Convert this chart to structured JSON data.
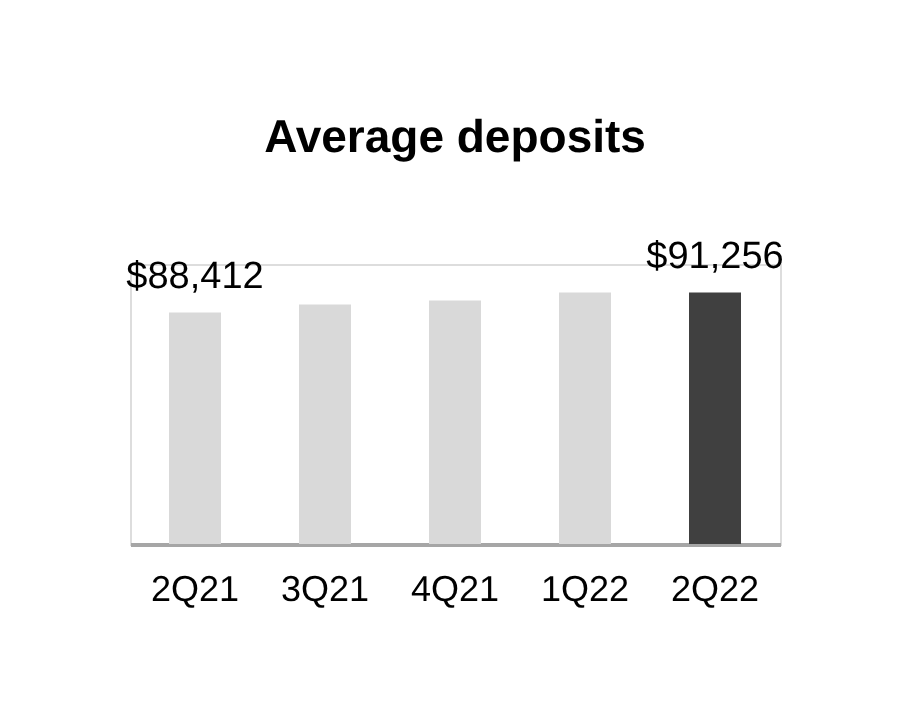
{
  "chart_data": {
    "type": "bar",
    "title": "Average deposits",
    "categories": [
      "2Q21",
      "3Q21",
      "4Q21",
      "1Q22",
      "2Q22"
    ],
    "values": [
      88412,
      89550,
      90120,
      91256,
      91256
    ],
    "value_labels": [
      "$88,412",
      null,
      null,
      null,
      "$91,256"
    ],
    "colors": [
      "#d9d9d9",
      "#d9d9d9",
      "#d9d9d9",
      "#d9d9d9",
      "#404040"
    ],
    "ylim": [
      55500,
      95300
    ]
  }
}
